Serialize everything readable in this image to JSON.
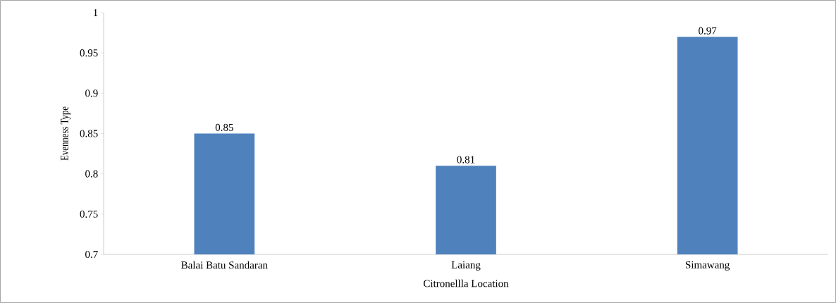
{
  "chart_data": {
    "type": "bar",
    "xlabel": "Citronellla Location",
    "ylabel": "Evenness Type",
    "categories": [
      "Balai Batu Sandaran",
      "Laiang",
      "Simawang"
    ],
    "values": [
      0.85,
      0.81,
      0.97
    ],
    "color": "#4f81bd",
    "ylim": [
      0.7,
      1
    ],
    "yticks": [
      0.7,
      0.75,
      0.8,
      0.85,
      0.9,
      0.95,
      1
    ],
    "data_labels": true
  }
}
